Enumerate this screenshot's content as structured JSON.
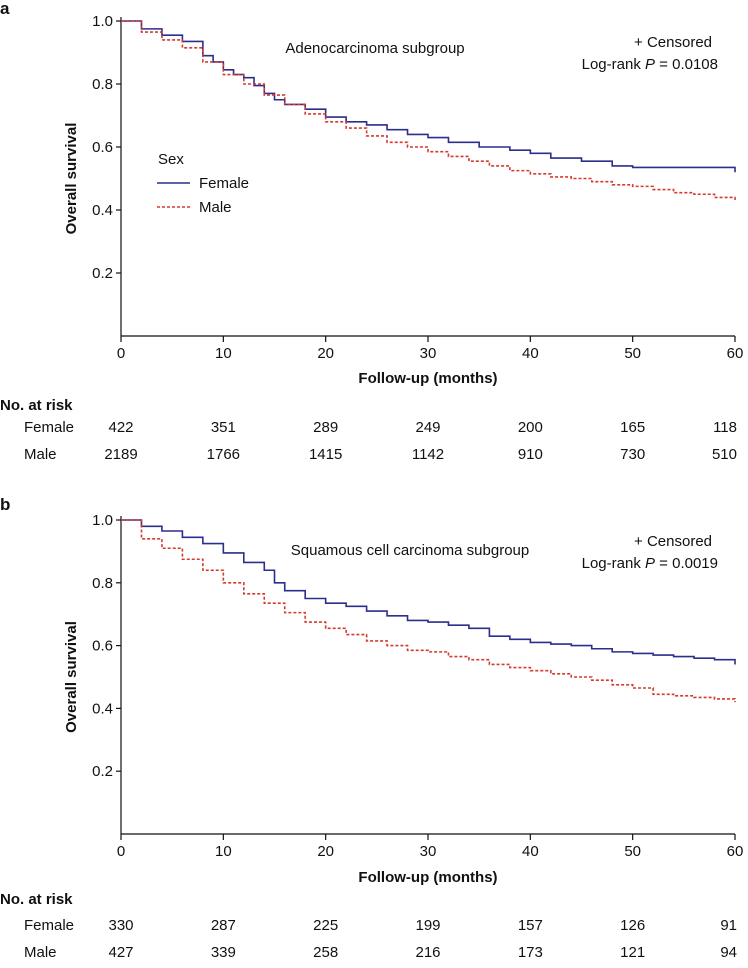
{
  "colors": {
    "female": "#2b2f8c",
    "male": "#d63a2e",
    "axis": "#111111"
  },
  "risk_header": "No. at risk",
  "chart_data": [
    {
      "type": "line",
      "panel": "a",
      "title": "Adenocarcinoma subgroup",
      "censored_label": "+ Censored",
      "logrank_label": "Log-rank",
      "p_symbol": "P",
      "p_value": "= 0.0108",
      "xlabel": "Follow-up (months)",
      "ylabel": "Overall survival",
      "xlim": [
        0,
        60
      ],
      "ylim": [
        0,
        1.0
      ],
      "xticks": [
        "0",
        "10",
        "20",
        "30",
        "40",
        "50",
        "60"
      ],
      "yticks": [
        "0.2",
        "0.4",
        "0.6",
        "0.8",
        "1.0"
      ],
      "legend_title": "Sex",
      "series": [
        {
          "name": "Female",
          "style": "solid",
          "color_key": "female",
          "x": [
            0,
            2,
            4,
            6,
            8,
            9,
            10,
            11,
            12,
            13,
            14,
            15,
            16,
            18,
            20,
            22,
            24,
            26,
            28,
            30,
            32,
            35,
            38,
            40,
            42,
            45,
            48,
            50,
            54,
            58,
            60
          ],
          "y": [
            1.0,
            0.975,
            0.955,
            0.935,
            0.89,
            0.87,
            0.845,
            0.83,
            0.82,
            0.795,
            0.77,
            0.75,
            0.735,
            0.72,
            0.695,
            0.68,
            0.67,
            0.655,
            0.64,
            0.63,
            0.615,
            0.6,
            0.59,
            0.58,
            0.565,
            0.555,
            0.54,
            0.535,
            0.535,
            0.535,
            0.52
          ]
        },
        {
          "name": "Male",
          "style": "dashed",
          "color_key": "male",
          "x": [
            0,
            2,
            4,
            6,
            8,
            10,
            12,
            14,
            16,
            18,
            20,
            22,
            24,
            26,
            28,
            30,
            32,
            34,
            36,
            38,
            40,
            42,
            44,
            46,
            48,
            50,
            52,
            54,
            56,
            58,
            60
          ],
          "y": [
            1.0,
            0.965,
            0.94,
            0.915,
            0.87,
            0.83,
            0.8,
            0.765,
            0.735,
            0.705,
            0.68,
            0.66,
            0.635,
            0.615,
            0.6,
            0.585,
            0.57,
            0.555,
            0.54,
            0.525,
            0.515,
            0.505,
            0.5,
            0.49,
            0.48,
            0.475,
            0.465,
            0.455,
            0.45,
            0.44,
            0.43
          ]
        }
      ],
      "at_risk": {
        "Female": [
          "422",
          "351",
          "289",
          "249",
          "200",
          "165",
          "118"
        ],
        "Male": [
          "2189",
          "1766",
          "1415",
          "1142",
          "910",
          "730",
          "510"
        ]
      }
    },
    {
      "type": "line",
      "panel": "b",
      "title": "Squamous cell carcinoma subgroup",
      "censored_label": "+ Censored",
      "logrank_label": "Log-rank",
      "p_symbol": "P",
      "p_value": "= 0.0019",
      "xlabel": "Follow-up (months)",
      "ylabel": "Overall survival",
      "xlim": [
        0,
        60
      ],
      "ylim": [
        0,
        1.0
      ],
      "xticks": [
        "0",
        "10",
        "20",
        "30",
        "40",
        "50",
        "60"
      ],
      "yticks": [
        "0.2",
        "0.4",
        "0.6",
        "0.8",
        "1.0"
      ],
      "series": [
        {
          "name": "Female",
          "style": "solid",
          "color_key": "female",
          "x": [
            0,
            2,
            4,
            6,
            8,
            10,
            12,
            14,
            15,
            16,
            18,
            20,
            22,
            24,
            26,
            28,
            30,
            32,
            34,
            36,
            38,
            40,
            42,
            44,
            46,
            48,
            50,
            52,
            54,
            56,
            58,
            60
          ],
          "y": [
            1.0,
            0.98,
            0.965,
            0.945,
            0.925,
            0.895,
            0.865,
            0.84,
            0.8,
            0.775,
            0.75,
            0.735,
            0.725,
            0.71,
            0.695,
            0.68,
            0.675,
            0.665,
            0.655,
            0.63,
            0.62,
            0.61,
            0.605,
            0.6,
            0.59,
            0.58,
            0.575,
            0.57,
            0.565,
            0.56,
            0.555,
            0.54
          ]
        },
        {
          "name": "Male",
          "style": "dashed",
          "color_key": "male",
          "x": [
            0,
            2,
            4,
            6,
            8,
            10,
            12,
            14,
            16,
            18,
            20,
            22,
            24,
            26,
            28,
            30,
            32,
            34,
            36,
            38,
            40,
            42,
            44,
            46,
            48,
            50,
            52,
            54,
            56,
            58,
            60
          ],
          "y": [
            1.0,
            0.94,
            0.91,
            0.875,
            0.84,
            0.8,
            0.765,
            0.735,
            0.705,
            0.675,
            0.655,
            0.635,
            0.615,
            0.6,
            0.585,
            0.58,
            0.565,
            0.555,
            0.54,
            0.53,
            0.52,
            0.51,
            0.5,
            0.49,
            0.475,
            0.465,
            0.445,
            0.44,
            0.435,
            0.43,
            0.42
          ]
        }
      ],
      "at_risk": {
        "Female": [
          "330",
          "287",
          "225",
          "199",
          "157",
          "126",
          "91"
        ],
        "Male": [
          "427",
          "339",
          "258",
          "216",
          "173",
          "121",
          "94"
        ]
      }
    }
  ]
}
